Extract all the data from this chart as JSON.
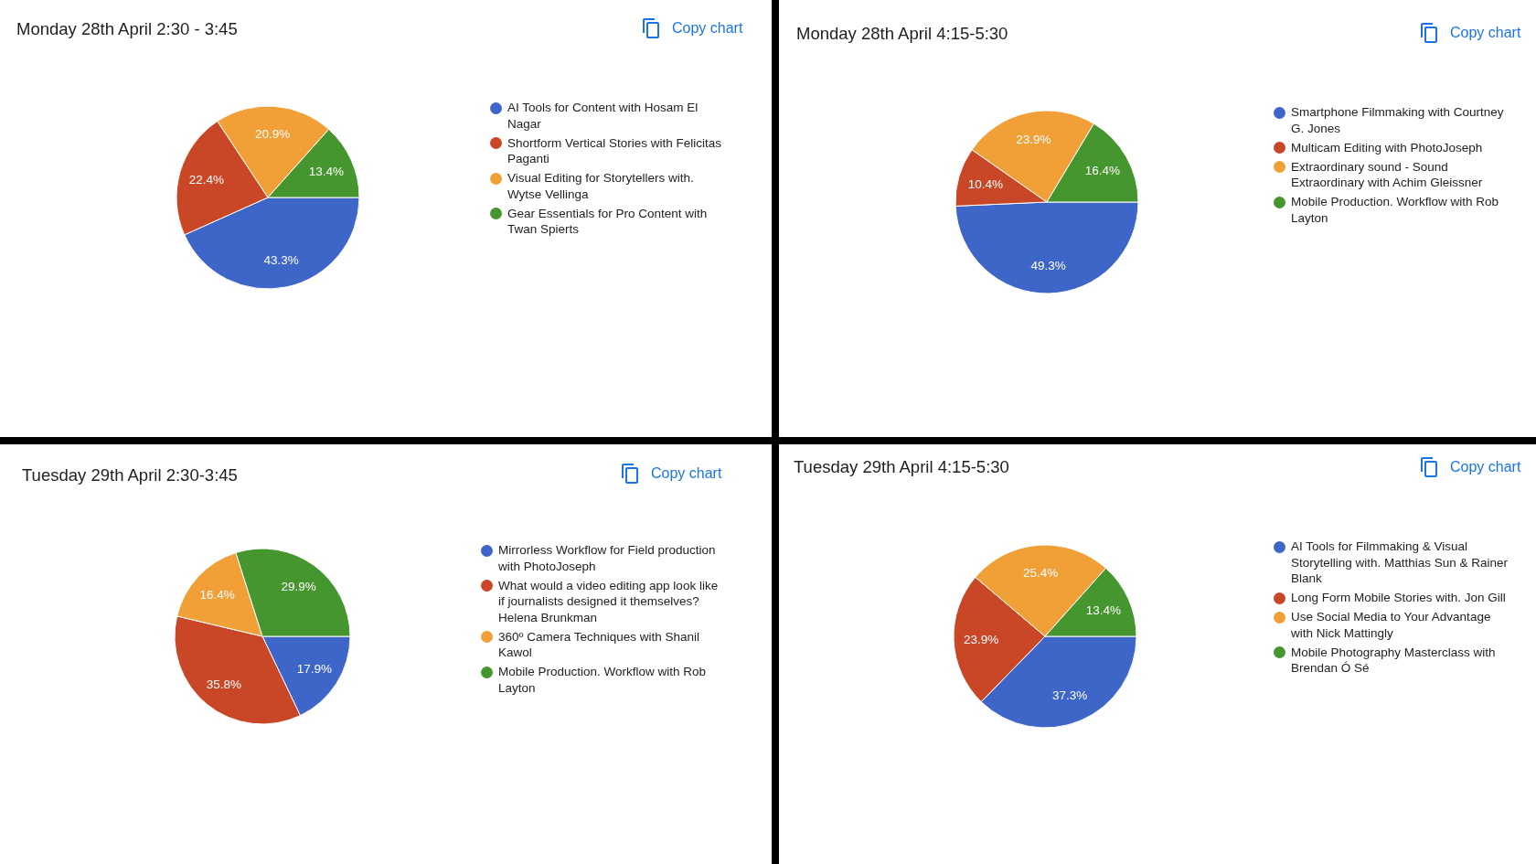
{
  "chart_data": [
    {
      "type": "pie",
      "title": "Monday 28th April 2:30 - 3:45",
      "categories": [
        "AI Tools for Content with Hosam El Nagar",
        "Shortform Vertical Stories with Felicitas Paganti",
        "Visual Editing for Storytellers with. Wytse Vellinga",
        "Gear Essentials for Pro Content with Twan Spierts"
      ],
      "values": [
        43.3,
        22.4,
        20.9,
        13.4
      ],
      "value_labels": [
        "43.3%",
        "22.4%",
        "20.9%",
        "13.4%"
      ],
      "colors": [
        "#3e66c8",
        "#c94627",
        "#f0a037",
        "#46962f"
      ],
      "legend": "right",
      "annotations": [
        "Copy chart"
      ]
    },
    {
      "type": "pie",
      "title": "Monday 28th April 4:15-5:30",
      "categories": [
        "Smartphone Filmmaking with Courtney G. Jones",
        "Multicam Editing with PhotoJoseph",
        "Extraordinary sound - Sound Extraordinary with Achim Gleissner",
        "Mobile Production. Workflow with Rob Layton"
      ],
      "values": [
        49.3,
        10.4,
        23.9,
        16.4
      ],
      "value_labels": [
        "49.3%",
        "10.4%",
        "23.9%",
        "16.4%"
      ],
      "colors": [
        "#3e66c8",
        "#c94627",
        "#f0a037",
        "#46962f"
      ],
      "legend": "right",
      "annotations": [
        "Copy chart"
      ]
    },
    {
      "type": "pie",
      "title": "Tuesday 29th April 2:30-3:45",
      "categories": [
        "Mirrorless Workflow for Field production with PhotoJoseph",
        "What would a video editing app look like if journalists designed it themselves? Helena Brunkman",
        "360º Camera Techniques with Shanil Kawol",
        "Mobile Production. Workflow with Rob Layton"
      ],
      "values": [
        17.9,
        35.8,
        16.4,
        29.9
      ],
      "value_labels": [
        "17.9%",
        "35.8%",
        "16.4%",
        "29.9%"
      ],
      "colors": [
        "#3e66c8",
        "#c94627",
        "#f0a037",
        "#46962f"
      ],
      "legend": "right",
      "annotations": [
        "Copy chart"
      ]
    },
    {
      "type": "pie",
      "title": "Tuesday 29th April 4:15-5:30",
      "categories": [
        "AI Tools for Filmmaking & Visual Storytelling with. Matthias Sun & Rainer Blank",
        "Long Form Mobile Stories with. Jon Gill",
        "Use Social Media to Your Advantage with Nick Mattingly",
        "Mobile Photography Masterclass with Brendan Ó Sé"
      ],
      "values": [
        37.3,
        23.9,
        25.4,
        13.4
      ],
      "value_labels": [
        "37.3%",
        "23.9%",
        "25.4%",
        "13.4%"
      ],
      "colors": [
        "#3e66c8",
        "#c94627",
        "#f0a037",
        "#46962f"
      ],
      "legend": "right",
      "annotations": [
        "Copy chart"
      ]
    }
  ]
}
